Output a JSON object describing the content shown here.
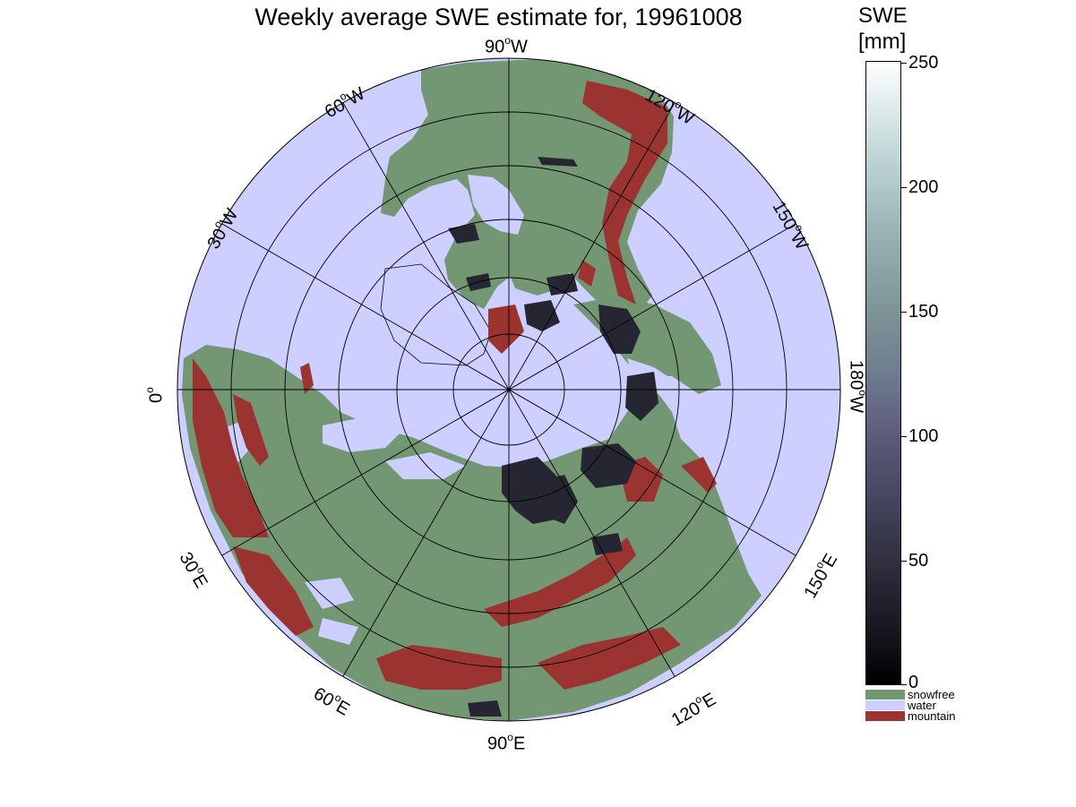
{
  "title": "Weekly average SWE estimate for, 19961008",
  "lon_labels": {
    "w90": "90",
    "w90_suffix": "W",
    "w120": "120",
    "w120_suffix": "W",
    "w150": "150",
    "w150_suffix": "W",
    "w180": "180",
    "w180_suffix": "W",
    "e150": "150",
    "e150_suffix": "E",
    "e120": "120",
    "e120_suffix": "E",
    "e90": "90",
    "e90_suffix": "E",
    "e60": "60",
    "e60_suffix": "E",
    "e30": "30",
    "e30_suffix": "E",
    "zero": "0",
    "w30": "30",
    "w30_suffix": "W",
    "w60": "60",
    "w60_suffix": "W",
    "degree_symbol": "o"
  },
  "colorbar": {
    "title_line1": "SWE",
    "title_line2": "[mm]",
    "ticks": [
      "250",
      "200",
      "150",
      "100",
      "50",
      "0"
    ],
    "range": [
      0,
      250
    ],
    "gradient_low": "#000000",
    "gradient_high": "#ffffff"
  },
  "categories": [
    {
      "label": "snowfree",
      "color": "#739673"
    },
    {
      "label": "water",
      "color": "#cccfff"
    },
    {
      "label": "mountain",
      "color": "#9b3430"
    }
  ],
  "colors": {
    "ocean": "#cccfff",
    "land": "#739673",
    "mountain": "#9b3430",
    "snow": "#262633"
  }
}
